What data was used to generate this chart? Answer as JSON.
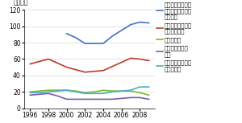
{
  "years_blue": [
    2000,
    2001,
    2002,
    2003,
    2004,
    2005,
    2006,
    2007,
    2008,
    2009
  ],
  "vals_blue": [
    91,
    86,
    79,
    79,
    79,
    88,
    95,
    102,
    105,
    104
  ],
  "years_all": [
    1996,
    1997,
    1998,
    1999,
    2000,
    2001,
    2002,
    2003,
    2004,
    2005,
    2006,
    2007,
    2008,
    2009
  ],
  "vals_red": [
    54,
    57,
    60,
    55,
    50,
    47,
    44,
    45,
    46,
    51,
    56,
    61,
    60,
    58
  ],
  "vals_green": [
    20,
    21,
    22,
    22,
    22,
    21,
    19,
    20,
    22,
    21,
    21,
    21,
    19,
    16
  ],
  "vals_purple": [
    16,
    17,
    18,
    15,
    11,
    11,
    11,
    11,
    11,
    11,
    12,
    13,
    13,
    11
  ],
  "vals_cyan": [
    19,
    19,
    20,
    21,
    22,
    20,
    18,
    18,
    18,
    20,
    21,
    22,
    26,
    26
  ],
  "blue_color": "#4472C4",
  "red_color": "#C0392B",
  "green_color": "#7DB928",
  "purple_color": "#7B5EA7",
  "cyan_color": "#4BACC6",
  "ylabel": "（万人）",
  "ylim": [
    0,
    120
  ],
  "yticks": [
    0,
    20,
    40,
    60,
    80,
    100,
    120
  ],
  "xticks": [
    1996,
    1998,
    2000,
    2002,
    2004,
    2006,
    2008
  ],
  "legend_labels": [
    "フレキシブル雇用\n就労者（国際基準\nによる）",
    "フレキシブル雇用\n就労者（計）",
    "派遣労働者",
    "オンコールワー\nカー",
    "その他のフレキシ\nブル就労者"
  ],
  "tick_fontsize": 5.5,
  "legend_fontsize": 5.0,
  "lw": 1.2
}
